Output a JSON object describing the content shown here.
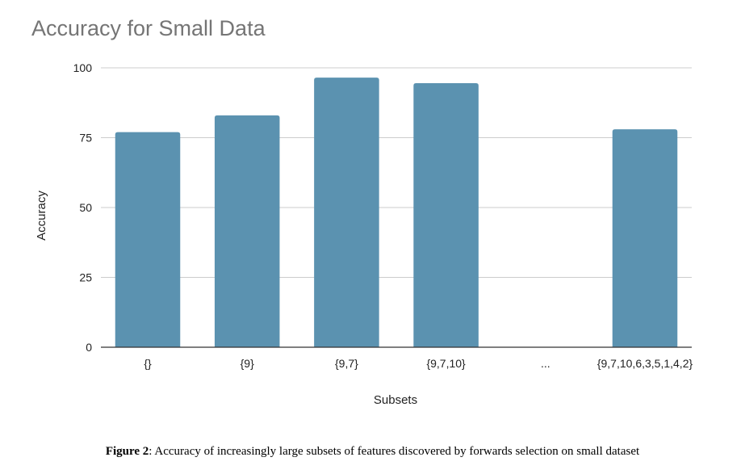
{
  "chart_data": {
    "type": "bar",
    "title": "Accuracy for Small Data",
    "xlabel": "Subsets",
    "ylabel": "Accuracy",
    "categories": [
      "{}",
      "{9}",
      "{9,7}",
      "{9,7,10}",
      "...",
      "{9,7,10,6,3,5,1,4,2}"
    ],
    "values": [
      77,
      83,
      96.5,
      94.5,
      null,
      78
    ],
    "ylim": [
      0,
      100
    ],
    "yticks": [
      0,
      25,
      50,
      75,
      100
    ],
    "grid": true,
    "legend": "none",
    "bar_color": "#5b92b0"
  },
  "caption": {
    "label": "Figure 2",
    "text": ": Accuracy of increasingly large subsets of features discovered by forwards selection on small dataset"
  }
}
